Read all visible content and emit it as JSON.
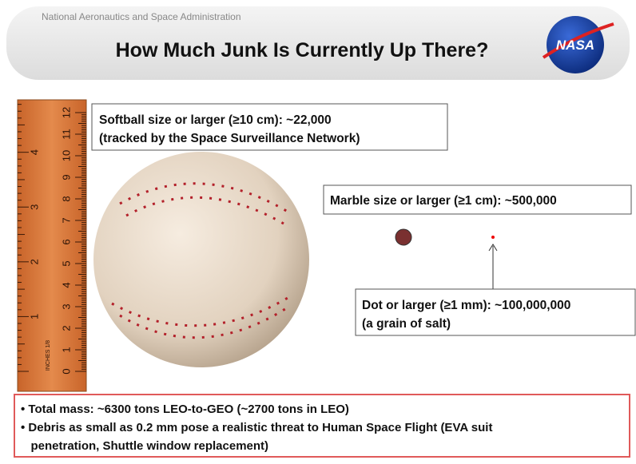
{
  "header": {
    "agency": "National Aeronautics and Space Administration",
    "title": "How Much Junk Is Currently Up There?",
    "logo": "NASA"
  },
  "ruler": {
    "cm_labels": [
      "0",
      "1",
      "2",
      "3",
      "4",
      "5",
      "6",
      "7",
      "8",
      "9",
      "10",
      "11",
      "12"
    ],
    "inch_labels": [
      "1",
      "2",
      "3",
      "4"
    ],
    "unit": "INCHES 1/8"
  },
  "softball": {
    "lines": [
      "Softball size or larger (≥10 cm):  ~22,000",
      "(tracked by the Space Surveillance Network)"
    ]
  },
  "marble": {
    "lines": [
      "Marble size or larger (≥1 cm):  ~500,000"
    ]
  },
  "dot": {
    "lines": [
      "Dot or larger (≥1 mm):  ~100,000,000",
      "(a grain of salt)"
    ]
  },
  "bullets": [
    [
      "• Total mass: ~6300 tons LEO-to-GEO  (~2700 tons in LEO)"
    ],
    [
      "• Debris as small as 0.2 mm pose a realistic threat to Human Space Flight (EVA suit",
      "   penetration, Shuttle window replacement)"
    ]
  ]
}
